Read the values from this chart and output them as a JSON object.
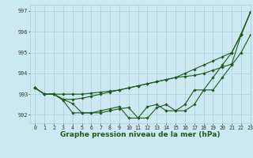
{
  "title": "Graphe pression niveau de la mer (hPa)",
  "background_color": "#cce8f0",
  "grid_color": "#aacfdc",
  "line_color": "#1a5c1a",
  "xlim": [
    -0.5,
    23
  ],
  "ylim": [
    991.6,
    997.3
  ],
  "yticks": [
    992,
    993,
    994,
    995,
    996,
    997
  ],
  "xtick_labels": [
    "0",
    "1",
    "2",
    "3",
    "4",
    "5",
    "6",
    "7",
    "8",
    "9",
    "10",
    "11",
    "12",
    "13",
    "14",
    "15",
    "16",
    "17",
    "18",
    "19",
    "20",
    "21",
    "22",
    "23"
  ],
  "series": [
    [
      993.3,
      993.0,
      993.0,
      992.7,
      992.1,
      992.1,
      992.1,
      992.2,
      992.3,
      992.4,
      991.85,
      991.85,
      992.4,
      992.5,
      992.2,
      992.2,
      992.5,
      993.2,
      993.2,
      993.8,
      994.4,
      995.0,
      995.9,
      996.95
    ],
    [
      993.3,
      993.0,
      993.0,
      992.75,
      992.55,
      992.1,
      992.1,
      992.1,
      992.2,
      992.3,
      992.35,
      991.85,
      991.85,
      992.35,
      992.5,
      992.2,
      992.2,
      992.5,
      993.2,
      993.2,
      993.8,
      994.4,
      995.0,
      995.85
    ],
    [
      993.3,
      993.0,
      993.0,
      993.0,
      993.0,
      993.0,
      993.05,
      993.1,
      993.15,
      993.2,
      993.3,
      993.4,
      993.5,
      993.6,
      993.7,
      993.8,
      993.85,
      993.9,
      994.0,
      994.15,
      994.3,
      994.45,
      995.85,
      996.95
    ],
    [
      993.3,
      993.0,
      993.0,
      992.75,
      992.75,
      992.8,
      992.9,
      993.0,
      993.1,
      993.2,
      993.3,
      993.4,
      993.5,
      993.6,
      993.7,
      993.8,
      994.0,
      994.2,
      994.4,
      994.6,
      994.8,
      995.0,
      995.85,
      996.95
    ]
  ],
  "marker_size": 1.8,
  "line_width": 0.8,
  "title_fontsize": 6.5,
  "tick_fontsize": 4.8,
  "ylabel_fontsize": 5.5
}
